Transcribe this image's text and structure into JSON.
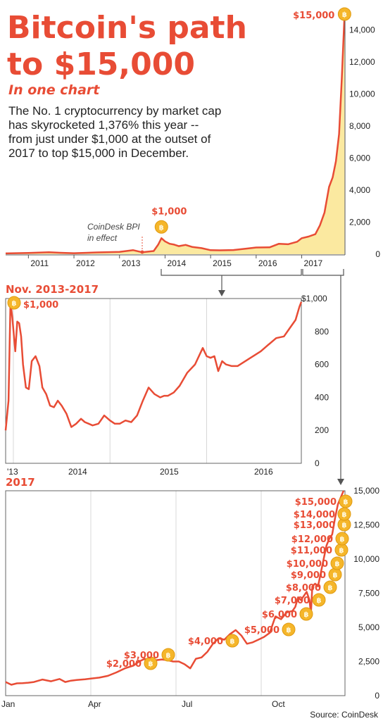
{
  "header": {
    "title_line1": "Bitcoin's path",
    "title_line2": "to $15,000",
    "subtitle": "In one chart",
    "desc_lines": [
      "The No. 1 cryptocurrency by market cap",
      "has skyrocketed 1,376% this year --",
      "from just under $1,000 at the outset of",
      "2017 to top $15,000 in December."
    ]
  },
  "source": "Source: CoinDesk",
  "colors": {
    "accent": "#e84c35",
    "fill": "#fbe9a0",
    "coin": "#f5b62a",
    "grid": "#d8d8d8"
  },
  "icon": "bitcoin-coin-icon",
  "chart_data": [
    {
      "type": "area",
      "title": "",
      "x_ticks": [
        "2011",
        "2012",
        "2013",
        "2014",
        "2015",
        "2016",
        "2017"
      ],
      "xlim": [
        2010.5,
        2017.95
      ],
      "ylim": [
        0,
        15000
      ],
      "y_ticks": [
        "0",
        "2,000",
        "4,000",
        "6,000",
        "8,000",
        "10,000",
        "12,000",
        "14,000"
      ],
      "annotations": [
        {
          "text": "$15,000",
          "x": 2017.94,
          "y": 15000
        },
        {
          "text": "$1,000",
          "x": 2013.92,
          "y": 1000
        },
        {
          "text_lines": [
            "CoinDesk BPI",
            "in effect"
          ],
          "x": 2013.6,
          "y": 0
        }
      ],
      "series": [
        {
          "x": [
            2010.5,
            2011.0,
            2011.45,
            2011.7,
            2012.0,
            2012.5,
            2013.0,
            2013.3,
            2013.5,
            2013.75,
            2013.85,
            2013.92,
            2014.0,
            2014.1,
            2014.2,
            2014.3,
            2014.45,
            2014.6,
            2014.8,
            2015.0,
            2015.2,
            2015.5,
            2015.8,
            2016.0,
            2016.3,
            2016.5,
            2016.7,
            2016.9,
            2017.0,
            2017.15,
            2017.3,
            2017.4,
            2017.5,
            2017.6,
            2017.68,
            2017.75,
            2017.82,
            2017.88,
            2017.94
          ],
          "y": [
            50,
            80,
            120,
            90,
            60,
            110,
            140,
            250,
            120,
            200,
            600,
            1000,
            800,
            650,
            600,
            500,
            580,
            450,
            380,
            250,
            240,
            260,
            350,
            420,
            430,
            650,
            620,
            780,
            1000,
            1100,
            1250,
            1800,
            2600,
            4200,
            4800,
            5800,
            7500,
            11000,
            15000
          ]
        }
      ]
    },
    {
      "type": "line",
      "title": "Nov. 2013-2017",
      "x_ticks": [
        "'13",
        "2014",
        "2015",
        "2016"
      ],
      "xlim": [
        2013.92,
        2016.98
      ],
      "ylim": [
        0,
        1000
      ],
      "y_ticks": [
        "0",
        "200",
        "400",
        "600",
        "800",
        "$1,000"
      ],
      "annotations": [
        {
          "text": "$1,000",
          "x": 2013.97,
          "y": 1000
        }
      ],
      "series": [
        {
          "x": [
            2013.92,
            2013.95,
            2013.97,
            2013.99,
            2014.02,
            2014.04,
            2014.06,
            2014.08,
            2014.1,
            2014.13,
            2014.16,
            2014.19,
            2014.23,
            2014.27,
            2014.3,
            2014.34,
            2014.38,
            2014.42,
            2014.46,
            2014.5,
            2014.55,
            2014.6,
            2014.65,
            2014.7,
            2014.74,
            2014.78,
            2014.82,
            2014.88,
            2014.94,
            2015.0,
            2015.05,
            2015.1,
            2015.16,
            2015.22,
            2015.28,
            2015.34,
            2015.4,
            2015.46,
            2015.52,
            2015.56,
            2015.6,
            2015.66,
            2015.72,
            2015.8,
            2015.88,
            2015.96,
            2016.0,
            2016.04,
            2016.08,
            2016.12,
            2016.16,
            2016.2,
            2016.26,
            2016.32,
            2016.4,
            2016.48,
            2016.56,
            2016.64,
            2016.72,
            2016.8,
            2016.86,
            2016.92,
            2016.96,
            2016.98
          ],
          "y": [
            200,
            380,
            980,
            880,
            680,
            860,
            850,
            770,
            600,
            460,
            450,
            620,
            650,
            590,
            460,
            420,
            350,
            340,
            380,
            350,
            300,
            220,
            240,
            270,
            250,
            240,
            230,
            240,
            290,
            260,
            240,
            240,
            260,
            250,
            290,
            380,
            460,
            420,
            400,
            410,
            410,
            430,
            470,
            550,
            600,
            700,
            650,
            640,
            650,
            560,
            620,
            600,
            590,
            590,
            620,
            650,
            680,
            720,
            760,
            770,
            820,
            870,
            950,
            980
          ]
        }
      ]
    },
    {
      "type": "line",
      "title": "2017",
      "x_ticks": [
        "Jan",
        "Apr",
        "Jul",
        "Oct"
      ],
      "xlim": [
        1,
        12.95
      ],
      "ylim": [
        0,
        15000
      ],
      "y_ticks": [
        "0",
        "2,500",
        "5,000",
        "7,500",
        "10,000",
        "12,500",
        "15,000"
      ],
      "milestones": [
        {
          "text": "$2,000",
          "x": 5.7,
          "y": 2000
        },
        {
          "text": "$3,000",
          "x": 6.35,
          "y": 3000
        },
        {
          "text": "$4,000",
          "x": 8.6,
          "y": 4000
        },
        {
          "text": "$5,000",
          "x": 10.35,
          "y": 5000
        },
        {
          "text": "$6,000",
          "x": 11.1,
          "y": 6000
        },
        {
          "text": "$7,000",
          "x": 11.3,
          "y": 7000
        },
        {
          "text": "$8,000",
          "x": 11.95,
          "y": 8000
        },
        {
          "text": "$9,000",
          "x": 12.25,
          "y": 9000
        },
        {
          "text": "$10,000",
          "x": 12.35,
          "y": 10000
        },
        {
          "text": "$11,000",
          "x": 12.45,
          "y": 11000
        },
        {
          "text": "$12,000",
          "x": 12.55,
          "y": 12000
        },
        {
          "text": "$13,000",
          "x": 12.6,
          "y": 13000
        },
        {
          "text": "$14,000",
          "x": 12.63,
          "y": 14000
        },
        {
          "text": "$15,000",
          "x": 12.65,
          "y": 15000
        }
      ],
      "series": [
        {
          "x": [
            1,
            1.2,
            1.4,
            1.6,
            1.8,
            2.0,
            2.3,
            2.6,
            2.9,
            3.1,
            3.3,
            3.5,
            3.8,
            4.0,
            4.3,
            4.6,
            4.9,
            5.2,
            5.5,
            5.7,
            5.9,
            6.1,
            6.3,
            6.5,
            6.7,
            6.9,
            7.1,
            7.3,
            7.5,
            7.7,
            7.9,
            8.1,
            8.3,
            8.5,
            8.7,
            8.9,
            9.1,
            9.3,
            9.5,
            9.7,
            9.9,
            10.1,
            10.3,
            10.5,
            10.7,
            10.9,
            11.1,
            11.2,
            11.3,
            11.4,
            11.5,
            11.6,
            11.7,
            11.75,
            11.8,
            11.9,
            12.0,
            12.1,
            12.2,
            12.3,
            12.4,
            12.5,
            12.6,
            12.7,
            12.8,
            12.9
          ],
          "y": [
            1000,
            800,
            900,
            920,
            950,
            1000,
            1180,
            1050,
            1220,
            1000,
            1100,
            1150,
            1200,
            1250,
            1320,
            1450,
            1700,
            2000,
            2200,
            2500,
            2700,
            2500,
            2600,
            2650,
            2600,
            2500,
            2500,
            2300,
            2000,
            2700,
            2800,
            3200,
            3800,
            4200,
            4100,
            4500,
            4800,
            4400,
            3800,
            3900,
            4100,
            4300,
            4600,
            5800,
            5600,
            6100,
            6200,
            6500,
            7200,
            7000,
            7300,
            7600,
            7000,
            6000,
            8000,
            8200,
            8000,
            9000,
            10000,
            11000,
            11500,
            11800,
            13000,
            14000,
            14500,
            15000
          ]
        }
      ]
    }
  ]
}
